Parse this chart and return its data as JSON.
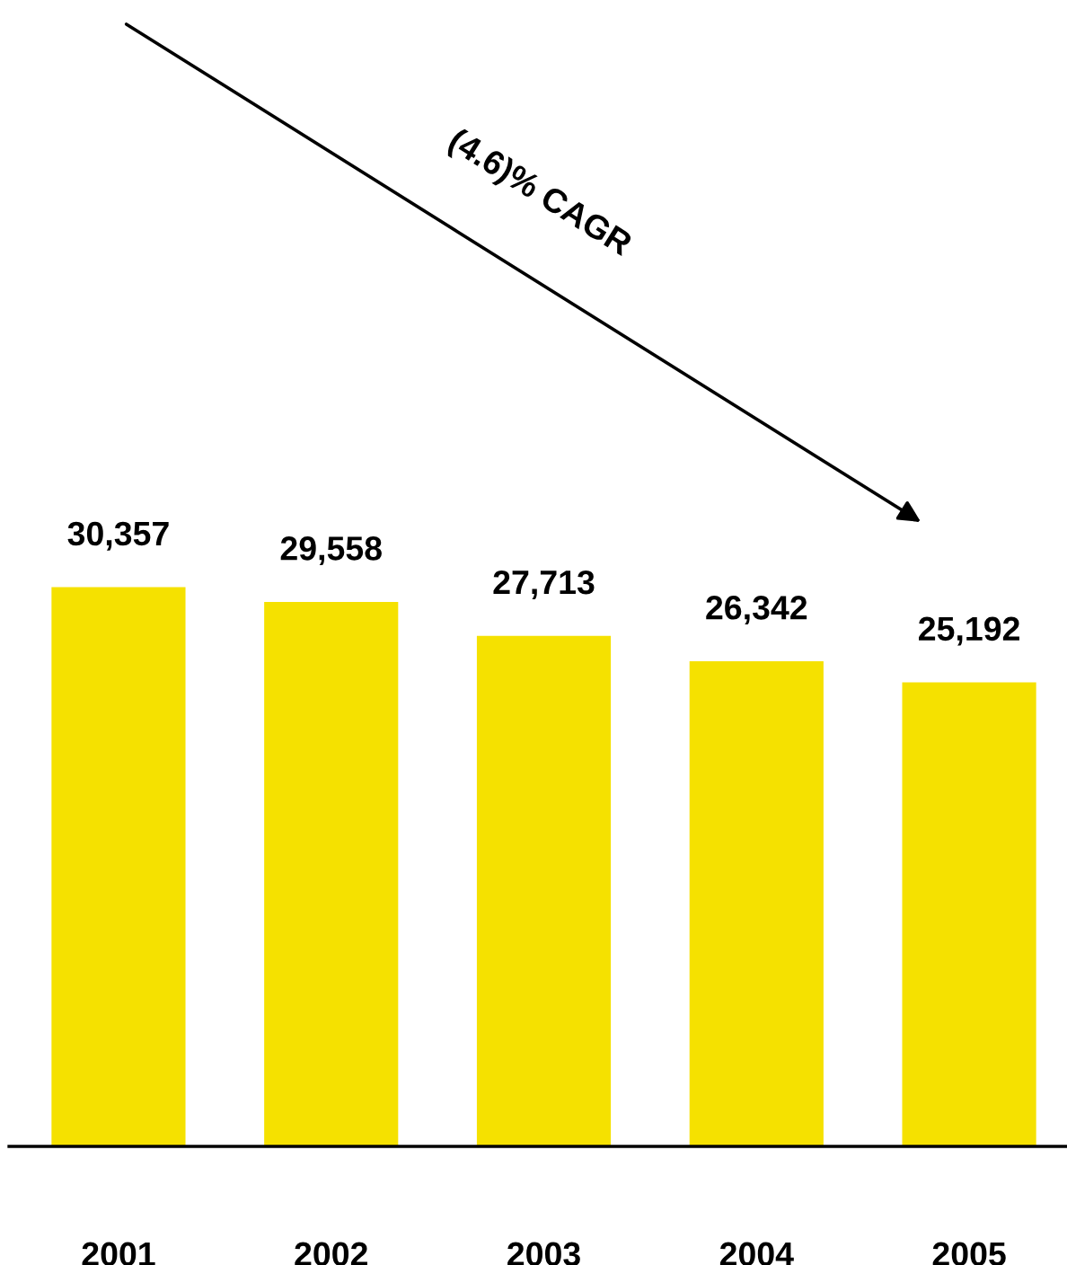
{
  "chart_data": {
    "type": "bar",
    "categories": [
      "2001",
      "2002",
      "2003",
      "2004",
      "2005"
    ],
    "values": [
      30357,
      29558,
      27713,
      26342,
      25192
    ],
    "color": "#f5e100",
    "value_labels": [
      "30,357",
      "29,558",
      "27,713",
      "26,342",
      "25,192"
    ],
    "tick_labels": "x",
    "grid": false,
    "annotations": [
      "(4.6)% CAGR"
    ]
  }
}
